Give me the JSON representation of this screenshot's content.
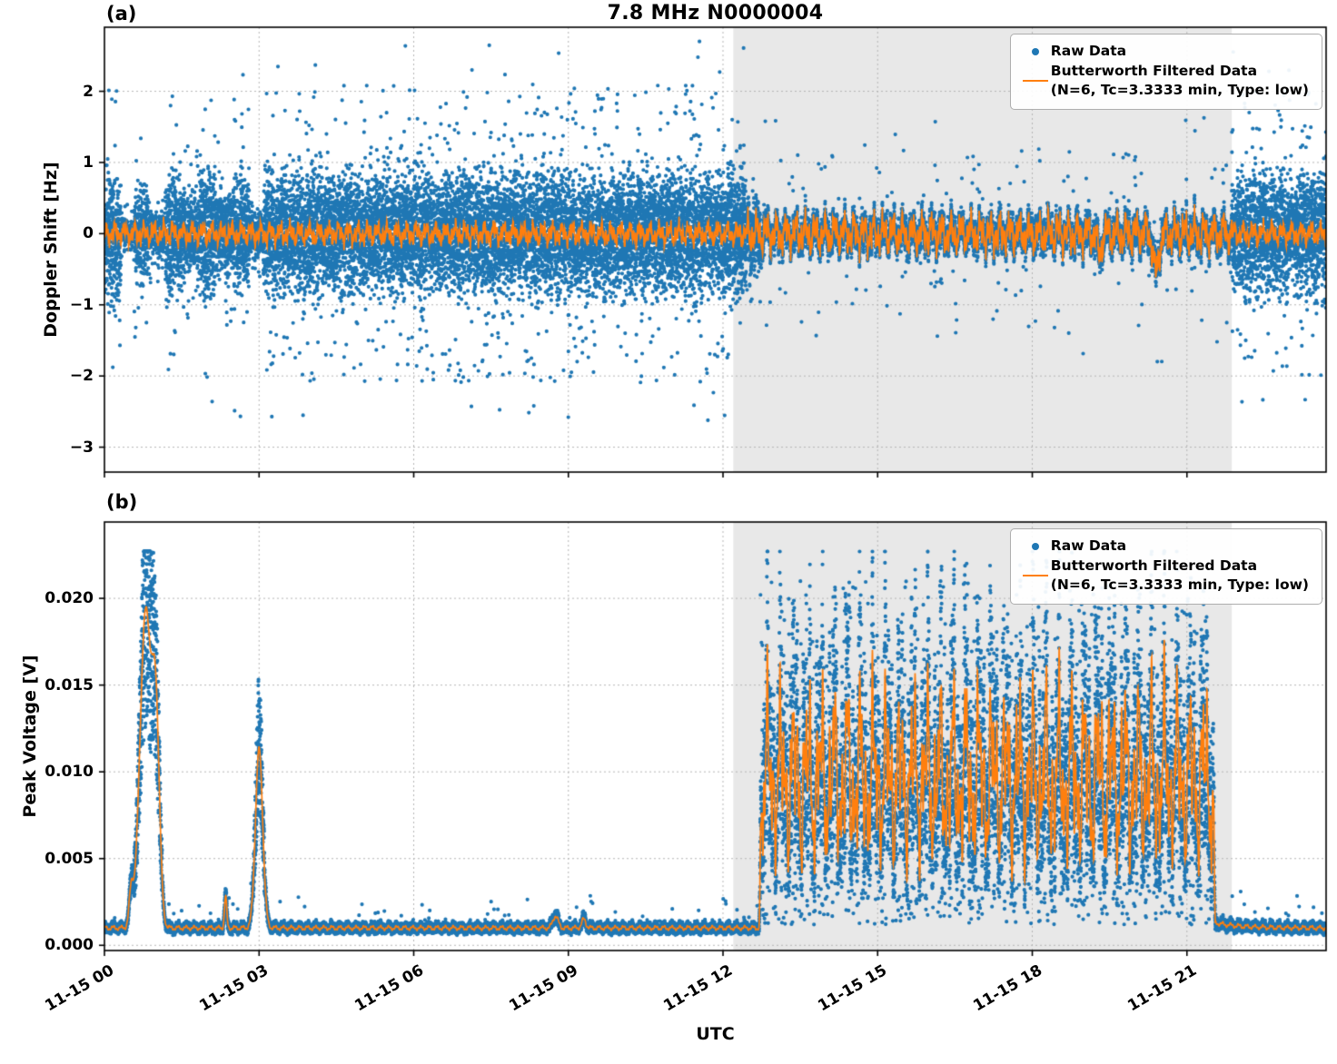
{
  "figure": {
    "title": "7.8 MHz N0000004",
    "xlabel": "UTC",
    "xlim_hours": [
      0,
      23.7
    ],
    "x_ticks": [
      {
        "h": 0,
        "label": "11-15 00"
      },
      {
        "h": 3,
        "label": "11-15 03"
      },
      {
        "h": 6,
        "label": "11-15 06"
      },
      {
        "h": 9,
        "label": "11-15 09"
      },
      {
        "h": 12,
        "label": "11-15 12"
      },
      {
        "h": 15,
        "label": "11-15 15"
      },
      {
        "h": 18,
        "label": "11-15 18"
      },
      {
        "h": 21,
        "label": "11-15 21"
      }
    ],
    "shaded_region": {
      "start_h": 12.2,
      "end_h": 21.87,
      "color": "#e8e8e8"
    }
  },
  "legend": {
    "raw_label": "Raw Data",
    "filtered_label": "Butterworth Filtered Data",
    "filtered_params": "(N=6, Tc=3.3333 min, Type: low)"
  },
  "panels": {
    "a": {
      "label": "(a)",
      "ylabel": "Doppler Shift [Hz]",
      "ylim": [
        -3.35,
        2.9
      ],
      "yticks": [
        {
          "v": 2,
          "label": "2"
        },
        {
          "v": 1,
          "label": "1"
        },
        {
          "v": 0,
          "label": "0"
        },
        {
          "v": -1,
          "label": "−1"
        },
        {
          "v": -2,
          "label": "−2"
        },
        {
          "v": -3,
          "label": "−3"
        }
      ]
    },
    "b": {
      "label": "(b)",
      "ylabel": "Peak Voltage [V]",
      "ylim": [
        -0.0003,
        0.0244
      ],
      "yticks": [
        {
          "v": 0,
          "label": "0.000"
        },
        {
          "v": 0.005,
          "label": "0.005"
        },
        {
          "v": 0.01,
          "label": "0.010"
        },
        {
          "v": 0.015,
          "label": "0.015"
        },
        {
          "v": 0.02,
          "label": "0.020"
        }
      ]
    }
  },
  "colors": {
    "raw": "#1f77b4",
    "filtered": "#ff7f0e",
    "grid": "#b5b5b5",
    "axis": "#000000",
    "shade": "#e8e8e8"
  },
  "chart_data": [
    {
      "panel": "a",
      "type": "scatter",
      "title": "7.8 MHz N0000004",
      "xlabel": "UTC",
      "ylabel": "Doppler Shift [Hz]",
      "xlim_hours": [
        0,
        23.7
      ],
      "ylim": [
        -3.35,
        2.9
      ],
      "x_tick_hours": [
        0,
        3,
        6,
        9,
        12,
        15,
        18,
        21
      ],
      "legend_position": "upper right",
      "grid": true,
      "series": [
        {
          "name": "Raw Data",
          "type": "scatter",
          "color": "#1f77b4",
          "band_segments": [
            [
              0,
              0.32,
              0.85,
              1
            ],
            [
              0.32,
              0.58,
              0.16,
              0.55
            ],
            [
              0.58,
              0.85,
              0.62,
              0.9
            ],
            [
              0.85,
              1.18,
              0.28,
              0.7
            ],
            [
              1.18,
              1.55,
              0.8,
              1
            ],
            [
              1.55,
              1.85,
              0.5,
              0.95
            ],
            [
              1.85,
              2.15,
              0.82,
              1
            ],
            [
              2.15,
              2.5,
              0.55,
              1
            ],
            [
              2.5,
              2.82,
              0.75,
              1
            ],
            [
              2.82,
              3.08,
              0.3,
              0.7
            ],
            [
              3.08,
              12.45,
              0.82,
              1
            ],
            [
              12.45,
              12.75,
              0.4,
              1
            ],
            [
              21.87,
              23.7,
              0.78,
              1
            ]
          ],
          "follow_region": [
            12.75,
            21.87
          ],
          "follow_spread": 0.06,
          "outlier_prob": 0.03,
          "far_outlier_prob": 0.004,
          "extreme_range": [
            1.9,
            2.7
          ]
        },
        {
          "name": "Butterworth Filtered Data",
          "type": "line",
          "color": "#ff7f0e",
          "amp_quiet": 0.16,
          "amp_shaded": 0.28,
          "shaded_range": [
            12.45,
            21.87
          ]
        }
      ]
    },
    {
      "panel": "b",
      "type": "scatter",
      "xlabel": "UTC",
      "ylabel": "Peak Voltage [V]",
      "xlim_hours": [
        0,
        23.7
      ],
      "ylim": [
        -0.0003,
        0.0244
      ],
      "x_tick_hours": [
        0,
        3,
        6,
        9,
        12,
        15,
        18,
        21
      ],
      "legend_position": "upper right",
      "grid": true,
      "series": [
        {
          "name": "Raw Data",
          "type": "scatter",
          "color": "#1f77b4"
        },
        {
          "name": "Butterworth Filtered Data",
          "type": "line",
          "color": "#ff7f0e"
        }
      ],
      "baseline": 0.001,
      "peaks": [
        {
          "c": 0.8,
          "w": 0.11,
          "h": 0.0182
        },
        {
          "c": 1.0,
          "w": 0.07,
          "h": 0.011
        },
        {
          "c": 0.52,
          "w": 0.04,
          "h": 0.002
        },
        {
          "c": 2.35,
          "w": 0.022,
          "h": 0.0018
        },
        {
          "c": 3.0,
          "w": 0.07,
          "h": 0.0103
        },
        {
          "c": 8.75,
          "w": 0.05,
          "h": 0.0007
        },
        {
          "c": 9.3,
          "w": 0.04,
          "h": 0.0005
        }
      ],
      "active_region": {
        "start_h": 12.7,
        "end_h": 21.55,
        "f_min": 0.0035,
        "f_max": 0.0177,
        "raw_clamp": 0.0227
      }
    }
  ]
}
